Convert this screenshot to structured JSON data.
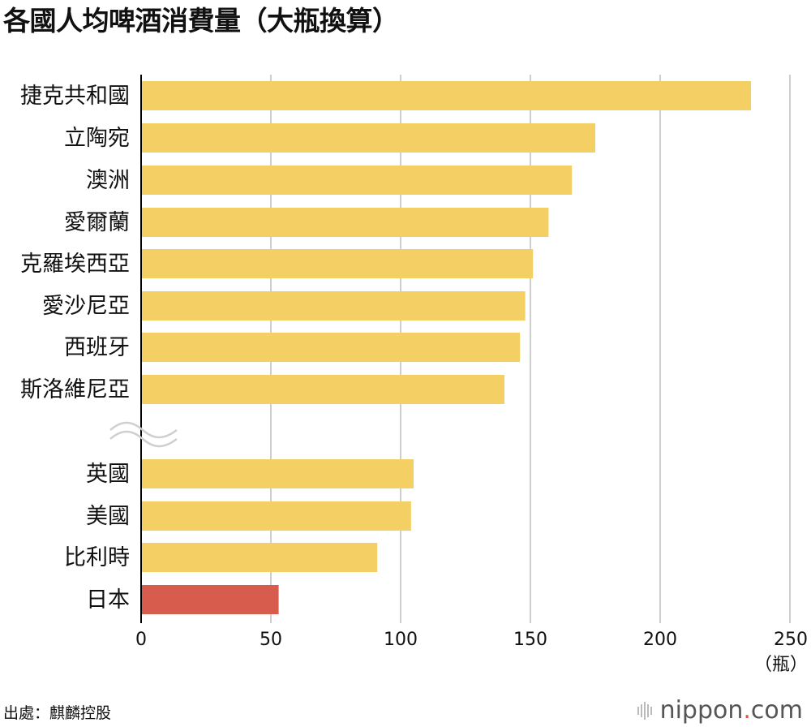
{
  "title": "各國人均啤酒消費量（大瓶換算）",
  "source": "出處：麒麟控股",
  "brand": {
    "name": "nippon",
    "dot": ".",
    "tld": "com"
  },
  "colors": {
    "bar": "#f4cf63",
    "highlight": "#d85c4e",
    "grid": "#cfcfcf",
    "axis": "#000000"
  },
  "chart_data": {
    "type": "bar",
    "orientation": "horizontal",
    "title": "各國人均啤酒消費量（大瓶換算）",
    "unit": "（瓶）",
    "xlim": [
      0,
      250
    ],
    "ticks": [
      0,
      50,
      100,
      150,
      200,
      250
    ],
    "grid": true,
    "axis_break_after_index": 7,
    "highlight_category": "日本",
    "categories": [
      "捷克共和國",
      "立陶宛",
      "澳洲",
      "愛爾蘭",
      "克羅埃西亞",
      "愛沙尼亞",
      "西班牙",
      "斯洛維尼亞",
      "英國",
      "美國",
      "比利時",
      "日本"
    ],
    "values": [
      235,
      175,
      166,
      157,
      151,
      148,
      146,
      140,
      105,
      104,
      91,
      53
    ]
  }
}
